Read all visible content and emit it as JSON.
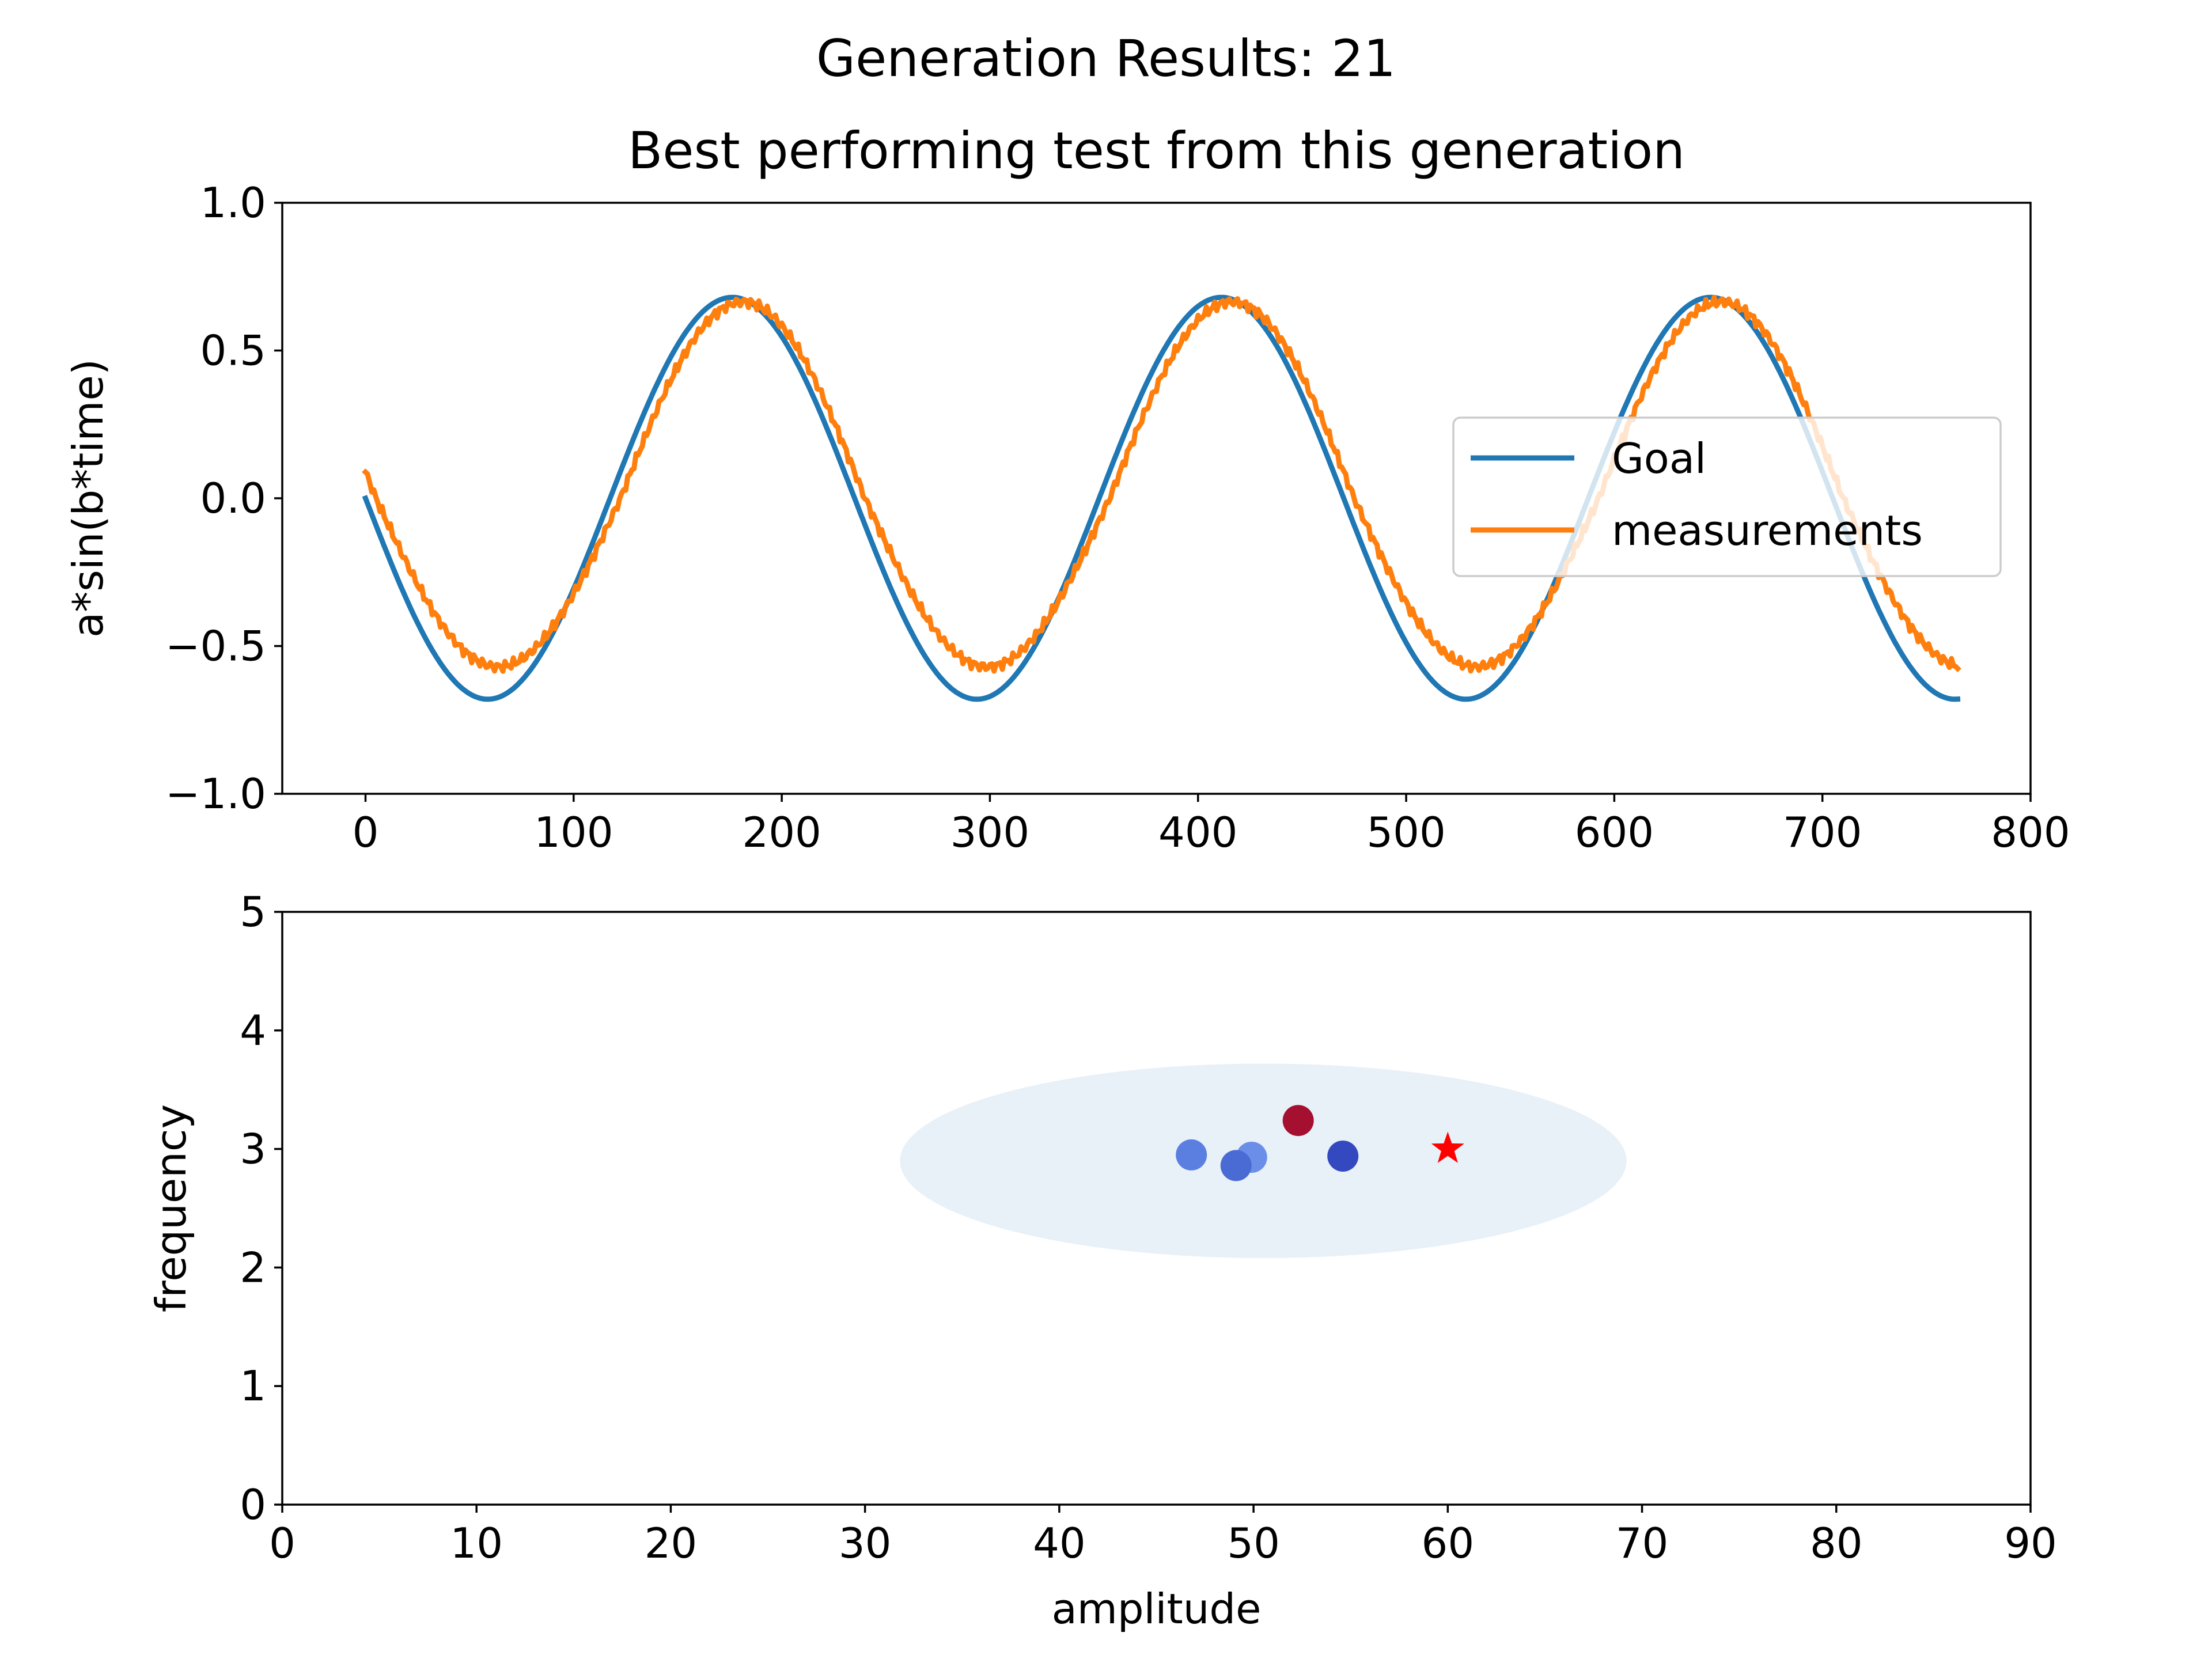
{
  "suptitle": "Generation Results: 21",
  "chart_data": [
    {
      "type": "line",
      "title": "Best performing test from this generation",
      "xlabel": "",
      "ylabel": "a*sin(b*time)",
      "xlim": [
        -40,
        800
      ],
      "ylim": [
        -1.0,
        1.0
      ],
      "xticks": [
        0,
        100,
        200,
        300,
        400,
        500,
        600,
        700,
        800
      ],
      "xtick_labels": [
        "0",
        "100",
        "200",
        "300",
        "400",
        "500",
        "600",
        "700",
        "800"
      ],
      "yticks": [
        -1.0,
        -0.5,
        0.0,
        0.5,
        1.0
      ],
      "ytick_labels": [
        "−1.0",
        "−0.5",
        "0.0",
        "0.5",
        "1.0"
      ],
      "legend_position": "center-right",
      "series": [
        {
          "name": "Goal",
          "color": "#1f77b4",
          "x_range": [
            0,
            765
          ],
          "amplitude": 0.68,
          "period": 235,
          "phase_sign": -1
        },
        {
          "name": "measurements",
          "color": "#ff7f0e",
          "x_range": [
            0,
            765
          ],
          "amplitude_pos": 0.665,
          "amplitude_neg": 0.57,
          "period": 235,
          "phase_sign": -1
        }
      ]
    },
    {
      "type": "scatter",
      "title": "",
      "xlabel": "amplitude",
      "ylabel": "frequency",
      "xlim": [
        0,
        90
      ],
      "ylim": [
        0,
        5
      ],
      "xticks": [
        0,
        10,
        20,
        30,
        40,
        50,
        60,
        70,
        80,
        90
      ],
      "xtick_labels": [
        "0",
        "10",
        "20",
        "30",
        "40",
        "50",
        "60",
        "70",
        "80",
        "90"
      ],
      "yticks": [
        0,
        1,
        2,
        3,
        4,
        5
      ],
      "ytick_labels": [
        "0",
        "1",
        "2",
        "3",
        "4",
        "5"
      ],
      "ellipse": {
        "cx": 50.5,
        "cy": 2.9,
        "rx": 18.7,
        "ry": 0.82,
        "color": "#e8f0f8"
      },
      "points": [
        {
          "x": 46.8,
          "y": 2.95,
          "color": "#5a7fe0"
        },
        {
          "x": 49.9,
          "y": 2.93,
          "color": "#6b8ee8"
        },
        {
          "x": 49.1,
          "y": 2.86,
          "color": "#4a6bd4"
        },
        {
          "x": 52.3,
          "y": 3.24,
          "color": "#a50f30"
        },
        {
          "x": 54.6,
          "y": 2.94,
          "color": "#3449c0"
        }
      ],
      "goal_marker": {
        "x": 60,
        "y": 3.0,
        "marker": "star",
        "color": "#ff0000"
      }
    }
  ]
}
